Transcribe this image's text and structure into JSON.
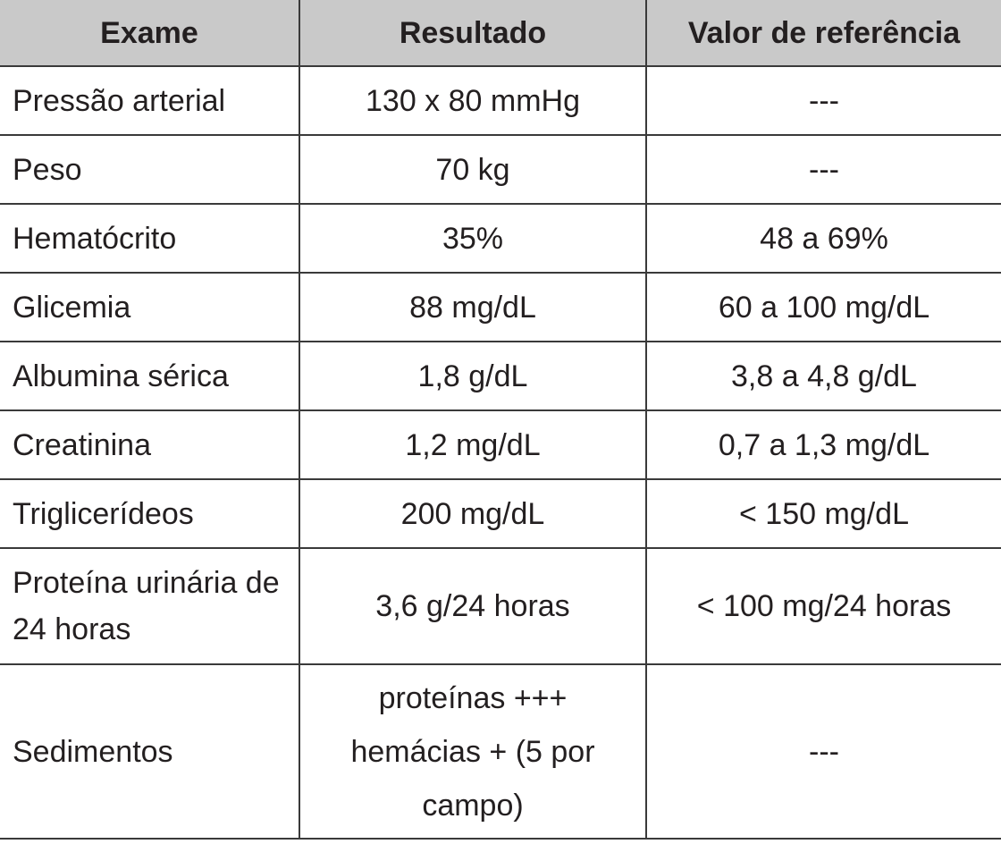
{
  "table": {
    "header": [
      "Exame",
      "Resultado",
      "Valor de referência"
    ],
    "rows": [
      [
        "Pressão arterial",
        "130 x 80 mmHg",
        "---"
      ],
      [
        "Peso",
        "70 kg",
        "---"
      ],
      [
        "Hematócrito",
        "35%",
        "48 a 69%"
      ],
      [
        "Glicemia",
        "88 mg/dL",
        "60 a 100 mg/dL"
      ],
      [
        "Albumina sérica",
        "1,8 g/dL",
        "3,8 a 4,8 g/dL"
      ],
      [
        "Creatinina",
        "1,2 mg/dL",
        "0,7 a 1,3 mg/dL"
      ],
      [
        "Triglicerídeos",
        "200 mg/dL",
        "< 150 mg/dL"
      ],
      [
        "Proteína urinária de 24 horas",
        "3,6 g/24 horas",
        "< 100 mg/24 horas"
      ],
      [
        "Sedimentos",
        [
          "proteínas +++",
          "hemácias + (5 por campo)"
        ],
        "---"
      ]
    ]
  }
}
